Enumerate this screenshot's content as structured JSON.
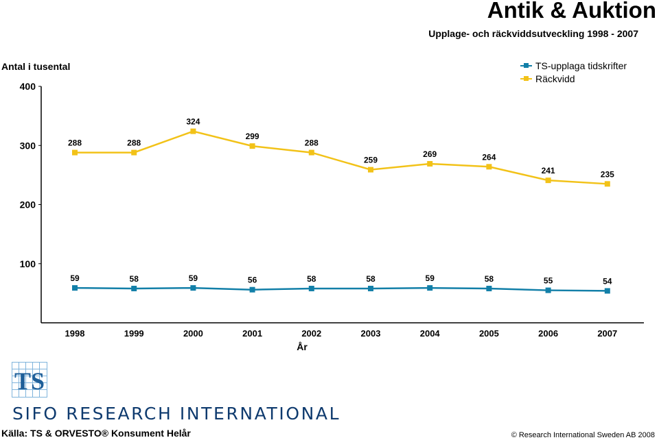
{
  "header": {
    "title": "Antik & Auktion",
    "subtitle": "Upplage- och räckviddsutveckling 1998 - 2007"
  },
  "chart_data": {
    "type": "line",
    "ylabel": "Antal i tusental",
    "xlabel": "År",
    "categories": [
      "1998",
      "1999",
      "2000",
      "2001",
      "2002",
      "2003",
      "2004",
      "2005",
      "2006",
      "2007"
    ],
    "ylim": [
      0,
      400
    ],
    "yticks": [
      "100",
      "200",
      "300",
      "400"
    ],
    "grid": false,
    "legend_position": "top-right",
    "series": [
      {
        "name": "TS-upplaga tidskrifter",
        "color": "#127fa8",
        "values": [
          59,
          58,
          59,
          56,
          58,
          58,
          59,
          58,
          55,
          54
        ]
      },
      {
        "name": "Räckvidd",
        "color": "#f2c218",
        "values": [
          288,
          288,
          324,
          299,
          288,
          259,
          269,
          264,
          241,
          235
        ]
      }
    ]
  },
  "logos": {
    "ts_logo_text": "TS",
    "sifo_text": "SIFO RESEARCH INTERNATIONAL"
  },
  "footer": {
    "source": "Källa: TS & ORVESTO® Konsument Helår",
    "copyright": "© Research International Sweden AB 2008"
  }
}
